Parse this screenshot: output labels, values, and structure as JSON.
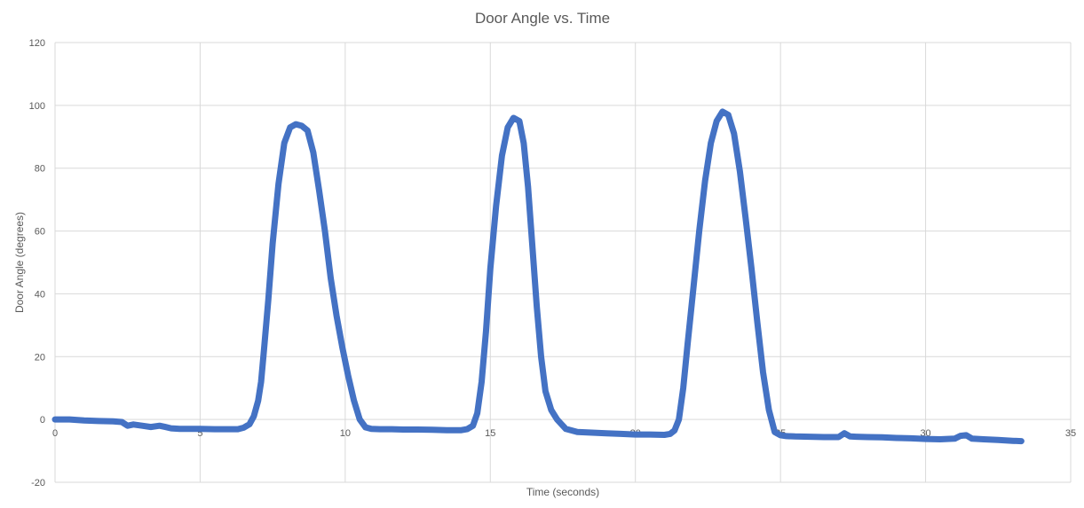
{
  "chart_data": {
    "type": "line",
    "title": "Door Angle vs. Time",
    "xlabel": "Time (seconds)",
    "ylabel": "Door Angle (degrees)",
    "xlim": [
      0,
      35
    ],
    "ylim": [
      -20,
      120
    ],
    "x_ticks": [
      0,
      5,
      10,
      15,
      20,
      25,
      30,
      35
    ],
    "y_ticks": [
      -20,
      0,
      20,
      40,
      60,
      80,
      100,
      120
    ],
    "grid": true,
    "legend": "none",
    "series": [
      {
        "color": "#4472c4",
        "x": [
          0,
          0.5,
          1.0,
          1.5,
          2.0,
          2.3,
          2.5,
          2.7,
          3.0,
          3.3,
          3.6,
          3.8,
          4.0,
          4.3,
          4.6,
          5.0,
          5.5,
          6.0,
          6.3,
          6.5,
          6.7,
          6.85,
          7.0,
          7.1,
          7.2,
          7.35,
          7.5,
          7.7,
          7.9,
          8.1,
          8.3,
          8.5,
          8.7,
          8.9,
          9.1,
          9.3,
          9.5,
          9.7,
          9.9,
          10.1,
          10.3,
          10.5,
          10.7,
          10.9,
          11.2,
          11.6,
          12.0,
          12.5,
          13.0,
          13.5,
          14.0,
          14.2,
          14.4,
          14.55,
          14.7,
          14.85,
          15.0,
          15.2,
          15.4,
          15.6,
          15.8,
          16.0,
          16.15,
          16.3,
          16.45,
          16.6,
          16.75,
          16.9,
          17.1,
          17.3,
          17.6,
          18.0,
          18.5,
          19.0,
          19.5,
          20.0,
          20.5,
          21.0,
          21.2,
          21.35,
          21.5,
          21.65,
          21.8,
          22.0,
          22.2,
          22.4,
          22.6,
          22.8,
          23.0,
          23.2,
          23.4,
          23.6,
          23.8,
          24.0,
          24.2,
          24.4,
          24.6,
          24.8,
          25.0,
          25.2,
          25.5,
          26.0,
          26.5,
          27.0,
          27.2,
          27.4,
          27.6,
          28.0,
          28.5,
          29.0,
          29.5,
          30.0,
          30.5,
          31.0,
          31.2,
          31.4,
          31.6,
          32.0,
          32.5,
          33.0,
          33.3
        ],
        "y": [
          0,
          0,
          -0.3,
          -0.5,
          -0.6,
          -0.8,
          -2.0,
          -1.6,
          -2.0,
          -2.4,
          -2.0,
          -2.4,
          -2.8,
          -3.0,
          -3.0,
          -3.0,
          -3.1,
          -3.1,
          -3.1,
          -2.6,
          -1.5,
          1.0,
          6.0,
          12.0,
          22.0,
          38.0,
          56.0,
          75.0,
          88.0,
          93.0,
          94.0,
          93.5,
          92.0,
          85.0,
          73.0,
          60.0,
          45.0,
          33.0,
          23.0,
          14.0,
          6.0,
          0.0,
          -2.5,
          -3.0,
          -3.1,
          -3.1,
          -3.2,
          -3.2,
          -3.3,
          -3.4,
          -3.4,
          -3.1,
          -2.0,
          2.0,
          12.0,
          28.0,
          48.0,
          68.0,
          84.0,
          93.0,
          96.0,
          95.0,
          88.0,
          74.0,
          55.0,
          36.0,
          20.0,
          9.0,
          3.0,
          0.0,
          -3.0,
          -4.0,
          -4.2,
          -4.4,
          -4.6,
          -4.8,
          -4.8,
          -4.9,
          -4.6,
          -3.5,
          0.0,
          10.0,
          24.0,
          42.0,
          60.0,
          76.0,
          88.0,
          95.0,
          98.0,
          97.0,
          91.0,
          79.0,
          64.0,
          48.0,
          31.0,
          15.0,
          3.0,
          -4.0,
          -5.0,
          -5.3,
          -5.4,
          -5.5,
          -5.6,
          -5.6,
          -4.4,
          -5.4,
          -5.5,
          -5.6,
          -5.7,
          -5.9,
          -6.0,
          -6.2,
          -6.3,
          -6.1,
          -5.2,
          -5.0,
          -6.1,
          -6.3,
          -6.5,
          -6.8,
          -6.9
        ]
      }
    ]
  }
}
